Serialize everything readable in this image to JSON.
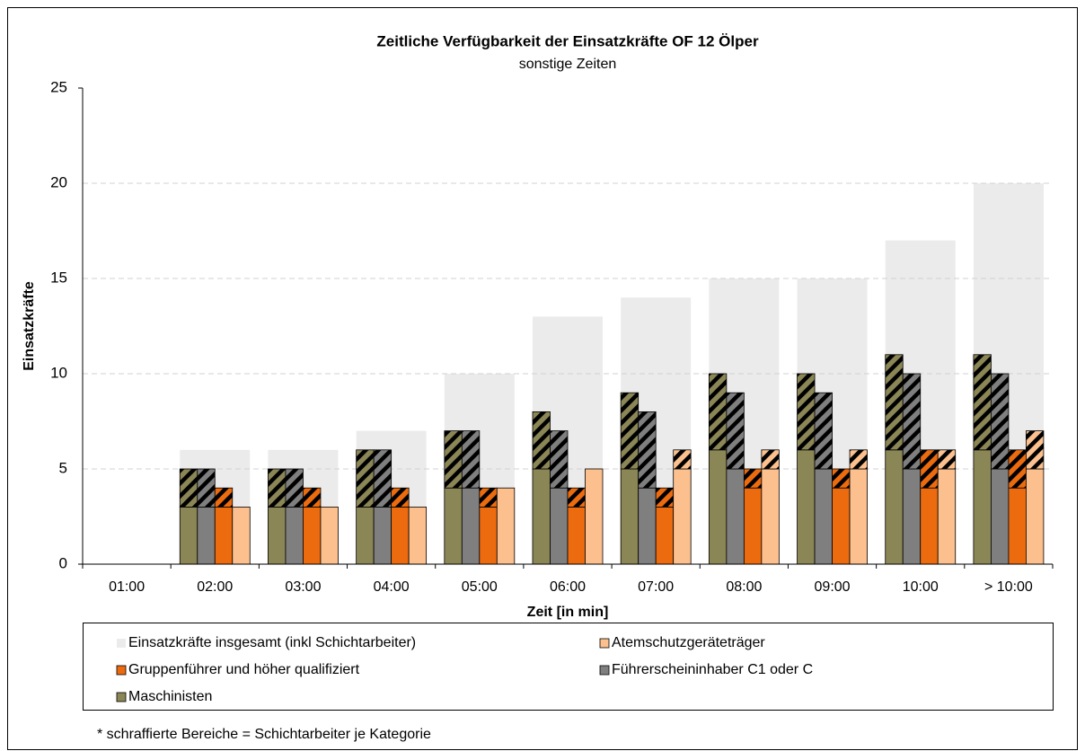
{
  "chart_data": {
    "type": "bar",
    "title": "Zeitliche Verfügbarkeit der Einsatzkräfte OF 12 Ölper",
    "subtitle": "sonstige Zeiten",
    "x_label": "Zeit [in min]",
    "y_label": "Einsatzkräfte",
    "note": "* schraffierte Bereiche = Schichtarbeiter je Kategorie",
    "categories": [
      "01:00",
      "02:00",
      "03:00",
      "04:00",
      "05:00",
      "06:00",
      "07:00",
      "08:00",
      "09:00",
      "10:00",
      "> 10:00"
    ],
    "series": [
      {
        "name": "Einsatzkräfte insgesamt (inkl Schichtarbeiter)",
        "color": "#ebebeb",
        "values": [
          0,
          6,
          6,
          7,
          10,
          13,
          14,
          15,
          15,
          17,
          20
        ]
      },
      {
        "name": "Atemschutzgeräteträger",
        "color": "#fbc08e",
        "values": [
          0,
          3,
          3,
          3,
          4,
          5,
          5,
          5,
          5,
          5,
          5
        ],
        "shift_values": [
          0,
          0,
          0,
          0,
          0,
          0,
          1,
          1,
          1,
          1,
          2
        ]
      },
      {
        "name": "Gruppenführer und höher qualifiziert",
        "color": "#ec6b0f",
        "values": [
          0,
          3,
          3,
          3,
          3,
          3,
          3,
          4,
          4,
          4,
          4
        ],
        "shift_values": [
          0,
          1,
          1,
          1,
          1,
          1,
          1,
          1,
          1,
          2,
          2
        ]
      },
      {
        "name": "Führerscheininhaber C1 oder C",
        "color": "#7f7f7f",
        "values": [
          0,
          3,
          3,
          3,
          4,
          4,
          4,
          5,
          5,
          5,
          5
        ],
        "shift_values": [
          0,
          2,
          2,
          3,
          3,
          3,
          4,
          4,
          4,
          5,
          5
        ]
      },
      {
        "name": "Maschinisten",
        "color": "#8b8655",
        "values": [
          0,
          3,
          3,
          3,
          4,
          5,
          5,
          6,
          6,
          6,
          6
        ],
        "shift_values": [
          0,
          2,
          2,
          3,
          3,
          3,
          4,
          4,
          4,
          5,
          5
        ]
      }
    ],
    "ylim": [
      0,
      25
    ],
    "yticks": [
      0,
      5,
      10,
      15,
      20,
      25
    ],
    "grid": true
  }
}
